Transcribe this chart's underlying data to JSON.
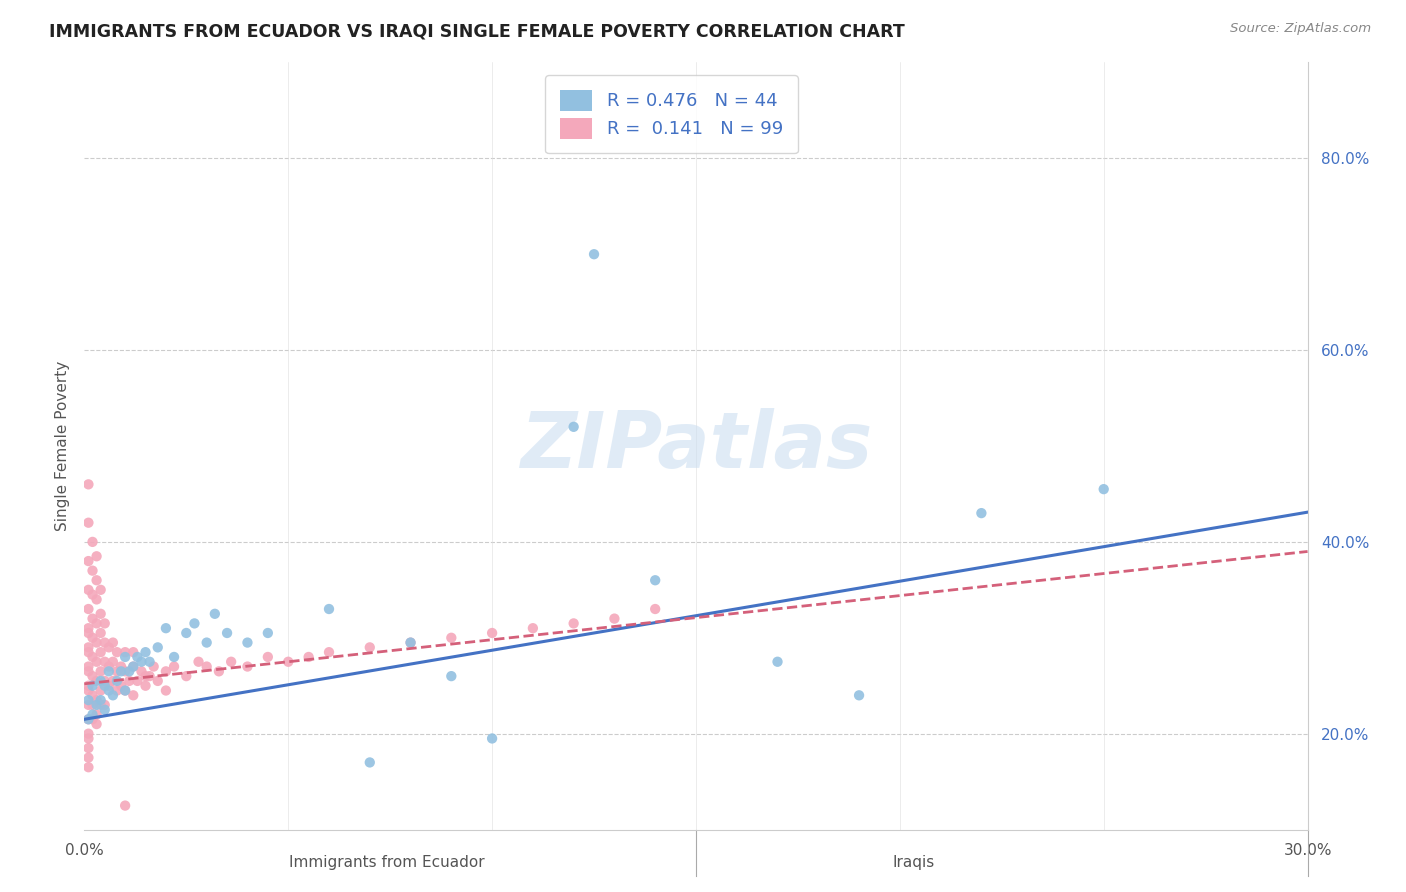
{
  "title": "IMMIGRANTS FROM ECUADOR VS IRAQI SINGLE FEMALE POVERTY CORRELATION CHART",
  "source": "Source: ZipAtlas.com",
  "ylabel": "Single Female Poverty",
  "x_label_center": "Immigrants from Ecuador",
  "x_label_right": "Iraqis",
  "xlim": [
    0.0,
    0.3
  ],
  "ylim": [
    0.1,
    0.9
  ],
  "x_ticks": [
    0.0,
    0.05,
    0.1,
    0.15,
    0.2,
    0.25,
    0.3
  ],
  "x_tick_labels": [
    "0.0%",
    "",
    "",
    "",
    "",
    "",
    "30.0%"
  ],
  "y_ticks_right": [
    0.2,
    0.4,
    0.6,
    0.8
  ],
  "y_tick_labels_right": [
    "20.0%",
    "40.0%",
    "60.0%",
    "80.0%"
  ],
  "ecuador_R": 0.476,
  "ecuador_N": 44,
  "iraqis_R": 0.141,
  "iraqis_N": 99,
  "ecuador_color": "#92C0E0",
  "iraqis_color": "#F4A8BB",
  "ecuador_line_color": "#4472C4",
  "iraqis_line_color": "#D4607A",
  "watermark_color": "#DDEEFF",
  "ecuador_points_x": [
    0.001,
    0.001,
    0.002,
    0.002,
    0.003,
    0.004,
    0.004,
    0.005,
    0.005,
    0.006,
    0.006,
    0.007,
    0.008,
    0.009,
    0.01,
    0.01,
    0.011,
    0.012,
    0.013,
    0.014,
    0.015,
    0.016,
    0.018,
    0.02,
    0.022,
    0.025,
    0.027,
    0.03,
    0.032,
    0.035,
    0.04,
    0.045,
    0.06,
    0.07,
    0.08,
    0.09,
    0.1,
    0.12,
    0.125,
    0.14,
    0.17,
    0.19,
    0.22,
    0.25
  ],
  "ecuador_points_y": [
    0.215,
    0.235,
    0.22,
    0.25,
    0.23,
    0.235,
    0.255,
    0.225,
    0.25,
    0.245,
    0.265,
    0.24,
    0.255,
    0.265,
    0.245,
    0.28,
    0.265,
    0.27,
    0.28,
    0.275,
    0.285,
    0.275,
    0.29,
    0.31,
    0.28,
    0.305,
    0.315,
    0.295,
    0.325,
    0.305,
    0.295,
    0.305,
    0.33,
    0.17,
    0.295,
    0.26,
    0.195,
    0.52,
    0.7,
    0.36,
    0.275,
    0.24,
    0.43,
    0.455
  ],
  "iraqis_points_x": [
    0.001,
    0.001,
    0.001,
    0.001,
    0.001,
    0.001,
    0.001,
    0.001,
    0.001,
    0.001,
    0.001,
    0.001,
    0.001,
    0.001,
    0.001,
    0.001,
    0.001,
    0.001,
    0.001,
    0.001,
    0.002,
    0.002,
    0.002,
    0.002,
    0.002,
    0.002,
    0.002,
    0.002,
    0.002,
    0.002,
    0.003,
    0.003,
    0.003,
    0.003,
    0.003,
    0.003,
    0.003,
    0.003,
    0.003,
    0.003,
    0.004,
    0.004,
    0.004,
    0.004,
    0.004,
    0.004,
    0.004,
    0.005,
    0.005,
    0.005,
    0.005,
    0.005,
    0.006,
    0.006,
    0.006,
    0.007,
    0.007,
    0.007,
    0.008,
    0.008,
    0.008,
    0.009,
    0.009,
    0.01,
    0.01,
    0.01,
    0.011,
    0.012,
    0.012,
    0.013,
    0.014,
    0.015,
    0.016,
    0.017,
    0.018,
    0.02,
    0.022,
    0.025,
    0.028,
    0.03,
    0.033,
    0.036,
    0.04,
    0.045,
    0.05,
    0.055,
    0.06,
    0.07,
    0.08,
    0.09,
    0.1,
    0.11,
    0.12,
    0.13,
    0.14,
    0.01,
    0.012,
    0.015,
    0.02
  ],
  "iraqis_points_y": [
    0.25,
    0.27,
    0.29,
    0.31,
    0.33,
    0.35,
    0.38,
    0.42,
    0.46,
    0.23,
    0.215,
    0.2,
    0.195,
    0.185,
    0.175,
    0.165,
    0.245,
    0.265,
    0.285,
    0.305,
    0.24,
    0.26,
    0.28,
    0.3,
    0.32,
    0.345,
    0.37,
    0.4,
    0.23,
    0.215,
    0.235,
    0.255,
    0.275,
    0.295,
    0.315,
    0.34,
    0.36,
    0.385,
    0.22,
    0.21,
    0.245,
    0.265,
    0.285,
    0.305,
    0.325,
    0.35,
    0.23,
    0.255,
    0.275,
    0.295,
    0.315,
    0.23,
    0.25,
    0.27,
    0.29,
    0.255,
    0.275,
    0.295,
    0.245,
    0.265,
    0.285,
    0.25,
    0.27,
    0.245,
    0.265,
    0.285,
    0.255,
    0.24,
    0.27,
    0.255,
    0.265,
    0.25,
    0.26,
    0.27,
    0.255,
    0.265,
    0.27,
    0.26,
    0.275,
    0.27,
    0.265,
    0.275,
    0.27,
    0.28,
    0.275,
    0.28,
    0.285,
    0.29,
    0.295,
    0.3,
    0.305,
    0.31,
    0.315,
    0.32,
    0.33,
    0.125,
    0.285,
    0.26,
    0.245
  ]
}
